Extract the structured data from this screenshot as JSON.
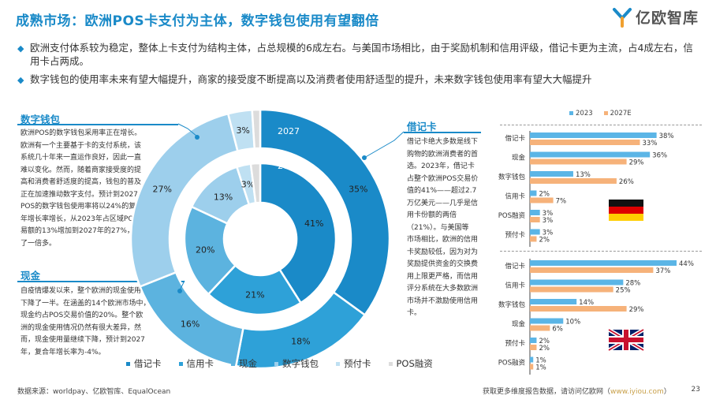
{
  "header": {
    "title": "成熟市场：欧洲POS卡支付为主体，数字钱包使用有望翻倍",
    "logo_text": "亿欧智库"
  },
  "bullets": [
    "欧洲支付体系较为稳定，整体上卡支付为结构主体，占总规模的6成左右。与美国市场相比，由于奖励机制和信用评级，借记卡更为主流，占4成左右，信用卡占两成。",
    "数字钱包的使用率未来有望大幅提升，商家的接受度不断提高以及消费者使用舒适型的提升，未来数字钱包使用率有望大大幅提升"
  ],
  "left_panel": {
    "wallet_title": "数字钱包",
    "wallet_lines": [
      "欧洲POS的数字钱包采用率正在增长。",
      "欧洲有一个主要基于卡的支付系统，该",
      "系统几十年来一直运作良好，因此一直",
      "难以变化。然而，随着商家接受度的提",
      "高和消费者舒适度的提高，钱包的普及",
      "正在加速推动数字支付。预计到2027年，",
      "POS的数字钱包使用率将以24%的复合",
      "年增长率增长，从2023年占区域POS交",
      "易额的13%增加到2027年的27%，增加",
      "了一倍多。"
    ],
    "cash_title": "现金",
    "cash_lines": [
      "自疫情爆发以来，整个欧洲的现金使用",
      "下降了一半。在涵盖的14个欧洲市场中，",
      "现金约占POS交易价值的20%。整个欧",
      "洲的现金使用情况仍然有很大差异，然",
      "而，现金使用量继续下降，预计到2027",
      "年，复合年增长率为-4%。"
    ]
  },
  "right_text": {
    "debit_title": "借记卡",
    "debit_lines": [
      "借记卡绝大多数是线下",
      "购物的欧洲消费者的首",
      "选。2023年，借记卡",
      "占整个欧洲POS交易价",
      "值的41%——超过2.7",
      "万亿美元——几乎是信",
      "用卡份额的两倍",
      "（21%）。与美国等",
      "市场相比，欧洲的信用",
      "卡奖励较低，因为对为",
      "奖励提供资金的交换费",
      "用上限更严格，而信用",
      "评分系统在大多数欧洲",
      "市场并不激励使用信用",
      "卡。"
    ]
  },
  "legend": [
    "借记卡",
    "信用卡",
    "现金",
    "数字钱包",
    "预付卡",
    "POS融资"
  ],
  "footer": {
    "source": "数据来源：worldpay、亿欧智库、EqualOcean",
    "more_prefix": "获取更多维度报告数据，请访问亿欧网（",
    "more_link": "www.iyiou.com",
    "more_suffix": "）",
    "page": "23"
  },
  "colors": {
    "debit": "#1a8ac8",
    "credit": "#2ea1d8",
    "cash": "#5cb3df",
    "wallet": "#9dcfec",
    "prepaid": "#bfe0f2",
    "posfin": "#dcdcdc",
    "bar2023": "#5bb5e6",
    "bar2027": "#f6b27a",
    "accent": "#1a8ac8"
  },
  "chart_data": [
    {
      "type": "pie",
      "title": "",
      "series": [
        {
          "name": "2023",
          "categories": [
            "借记卡",
            "信用卡",
            "现金",
            "数字钱包",
            "预付卡",
            "POS融资"
          ],
          "values": [
            41,
            21,
            20,
            13,
            3,
            2
          ]
        },
        {
          "name": "2027",
          "categories": [
            "借记卡",
            "信用卡",
            "现金",
            "数字钱包",
            "预付卡",
            "POS融资"
          ],
          "values": [
            35,
            18,
            16,
            27,
            3,
            1
          ]
        }
      ],
      "slice_labels_2023": [
        "41%",
        "21%",
        "20%",
        "13%",
        "3%",
        ""
      ],
      "slice_labels_2027": [
        "35%",
        "18%",
        "16%",
        "27%",
        "3%",
        ""
      ]
    },
    {
      "type": "bar",
      "orientation": "horizontal",
      "region_icon": "germany-flag",
      "categories": [
        "借记卡",
        "现金",
        "数字钱包",
        "信用卡",
        "POS融资",
        "预付卡"
      ],
      "series": [
        {
          "name": "2023",
          "values": [
            38,
            36,
            13,
            2,
            3,
            3
          ]
        },
        {
          "name": "2027E",
          "values": [
            33,
            29,
            26,
            7,
            3,
            2
          ]
        }
      ],
      "xlim": [
        0,
        40
      ]
    },
    {
      "type": "bar",
      "orientation": "horizontal",
      "region_icon": "uk-flag",
      "categories": [
        "借记卡",
        "信用卡",
        "数字钱包",
        "现金",
        "预付卡",
        "POS融资"
      ],
      "series": [
        {
          "name": "2023",
          "values": [
            44,
            28,
            14,
            10,
            2,
            1
          ]
        },
        {
          "name": "2027E",
          "values": [
            37,
            25,
            29,
            6,
            2,
            1
          ]
        }
      ],
      "xlim": [
        0,
        46
      ]
    }
  ]
}
